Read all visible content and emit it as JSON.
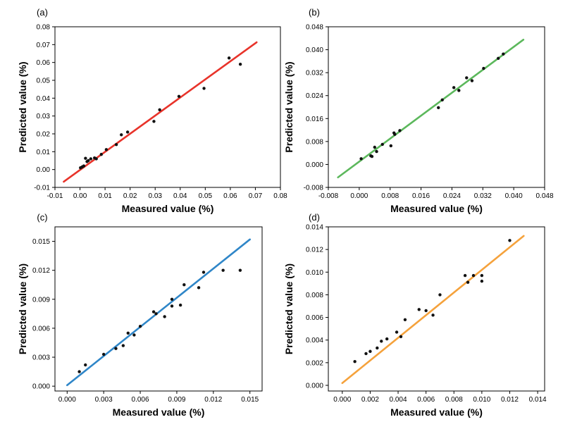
{
  "chart_data": [
    {
      "type": "scatter",
      "panel_label": "(a)",
      "xlabel": "Measured value (%)",
      "ylabel": "Predicted value (%)",
      "xlim": [
        -0.01,
        0.08
      ],
      "ylim": [
        -0.01,
        0.08
      ],
      "xticks": [
        -0.01,
        0,
        0.01,
        0.02,
        0.03,
        0.04,
        0.05,
        0.06,
        0.07,
        0.08
      ],
      "xtick_labels": [
        "-0.01",
        "0.00",
        "0.01",
        "0.02",
        "0.03",
        "0.04",
        "0.05",
        "0.06",
        "0.07",
        "0.08"
      ],
      "yticks": [
        -0.01,
        0,
        0.01,
        0.02,
        0.03,
        0.04,
        0.05,
        0.06,
        0.07,
        0.08
      ],
      "ytick_labels": [
        "-0.01",
        "0.00",
        "0.01",
        "0.02",
        "0.03",
        "0.04",
        "0.05",
        "0.06",
        "0.07",
        "0.08"
      ],
      "line_color": "#e8332a",
      "fit_line": {
        "x": [
          -0.0065,
          0.0705
        ],
        "y": [
          -0.0068,
          0.0713
        ]
      },
      "points": [
        [
          0.0002,
          0.001
        ],
        [
          0.0009,
          0.0015
        ],
        [
          0.0015,
          0.002
        ],
        [
          0.0022,
          0.0063
        ],
        [
          0.0028,
          0.0045
        ],
        [
          0.0033,
          0.005
        ],
        [
          0.0043,
          0.006
        ],
        [
          0.0058,
          0.0065
        ],
        [
          0.0065,
          0.006
        ],
        [
          0.0085,
          0.0085
        ],
        [
          0.0105,
          0.0112
        ],
        [
          0.0145,
          0.014
        ],
        [
          0.0165,
          0.0195
        ],
        [
          0.019,
          0.021
        ],
        [
          0.0295,
          0.027
        ],
        [
          0.0318,
          0.0335
        ],
        [
          0.0395,
          0.041
        ],
        [
          0.0495,
          0.0455
        ],
        [
          0.0595,
          0.0625
        ],
        [
          0.064,
          0.059
        ]
      ]
    },
    {
      "type": "scatter",
      "panel_label": "(b)",
      "xlabel": "Measured value (%)",
      "ylabel": "Predicted value (%)",
      "xlim": [
        -0.008,
        0.048
      ],
      "ylim": [
        -0.008,
        0.048
      ],
      "xticks": [
        -0.008,
        0,
        0.008,
        0.016,
        0.024,
        0.032,
        0.04,
        0.048
      ],
      "xtick_labels": [
        "-0.008",
        "0.000",
        "0.008",
        "0.016",
        "0.024",
        "0.032",
        "0.040",
        "0.048"
      ],
      "yticks": [
        -0.008,
        0,
        0.008,
        0.016,
        0.024,
        0.032,
        0.04,
        0.048
      ],
      "ytick_labels": [
        "-0.008",
        "0.000",
        "0.008",
        "0.016",
        "0.024",
        "0.032",
        "0.040",
        "0.048"
      ],
      "line_color": "#5cb85c",
      "fit_line": {
        "x": [
          -0.0055,
          0.0425
        ],
        "y": [
          -0.0045,
          0.0435
        ]
      },
      "points": [
        [
          0.0005,
          0.002
        ],
        [
          0.003,
          0.003
        ],
        [
          0.0033,
          0.0028
        ],
        [
          0.004,
          0.006
        ],
        [
          0.0045,
          0.0045
        ],
        [
          0.006,
          0.007
        ],
        [
          0.0082,
          0.0065
        ],
        [
          0.009,
          0.011
        ],
        [
          0.0092,
          0.0105
        ],
        [
          0.0105,
          0.0118
        ],
        [
          0.0205,
          0.0198
        ],
        [
          0.0215,
          0.0225
        ],
        [
          0.0245,
          0.0268
        ],
        [
          0.0258,
          0.0258
        ],
        [
          0.0278,
          0.0302
        ],
        [
          0.0292,
          0.0292
        ],
        [
          0.0322,
          0.0335
        ],
        [
          0.036,
          0.037
        ],
        [
          0.0373,
          0.0385
        ]
      ]
    },
    {
      "type": "scatter",
      "panel_label": "(c)",
      "xlabel": "Measured value (%)",
      "ylabel": "Predicted value (%)",
      "xlim": [
        -0.001,
        0.016
      ],
      "ylim": [
        -0.0005,
        0.0165
      ],
      "xticks": [
        0,
        0.003,
        0.006,
        0.009,
        0.012,
        0.015
      ],
      "xtick_labels": [
        "0.000",
        "0.003",
        "0.006",
        "0.009",
        "0.012",
        "0.015"
      ],
      "yticks": [
        0,
        0.003,
        0.006,
        0.009,
        0.012,
        0.015
      ],
      "ytick_labels": [
        "0.000",
        "0.003",
        "0.006",
        "0.009",
        "0.012",
        "0.015"
      ],
      "line_color": "#2f86c8",
      "fit_line": {
        "x": [
          0.0,
          0.015
        ],
        "y": [
          0.0001,
          0.0152
        ]
      },
      "points": [
        [
          0.001,
          0.0015
        ],
        [
          0.0015,
          0.0022
        ],
        [
          0.003,
          0.0033
        ],
        [
          0.004,
          0.0039
        ],
        [
          0.0046,
          0.0042
        ],
        [
          0.005,
          0.0055
        ],
        [
          0.0055,
          0.0053
        ],
        [
          0.006,
          0.0062
        ],
        [
          0.0071,
          0.0077
        ],
        [
          0.0073,
          0.0075
        ],
        [
          0.008,
          0.0072
        ],
        [
          0.0086,
          0.009
        ],
        [
          0.0086,
          0.0083
        ],
        [
          0.0093,
          0.0084
        ],
        [
          0.0096,
          0.0105
        ],
        [
          0.0108,
          0.0102
        ],
        [
          0.0112,
          0.0118
        ],
        [
          0.0128,
          0.012
        ],
        [
          0.0142,
          0.012
        ]
      ]
    },
    {
      "type": "scatter",
      "panel_label": "(d)",
      "xlabel": "Measured value (%)",
      "ylabel": "Predicted value (%)",
      "xlim": [
        -0.001,
        0.0145
      ],
      "ylim": [
        -0.0005,
        0.014
      ],
      "xticks": [
        0,
        0.002,
        0.004,
        0.006,
        0.008,
        0.01,
        0.012,
        0.014
      ],
      "xtick_labels": [
        "0.000",
        "0.002",
        "0.004",
        "0.006",
        "0.008",
        "0.010",
        "0.012",
        "0.014"
      ],
      "yticks": [
        0,
        0.002,
        0.004,
        0.006,
        0.008,
        0.01,
        0.012,
        0.014
      ],
      "ytick_labels": [
        "0.000",
        "0.002",
        "0.004",
        "0.006",
        "0.008",
        "0.010",
        "0.012",
        "0.014"
      ],
      "line_color": "#f5a23c",
      "fit_line": {
        "x": [
          0.0,
          0.013
        ],
        "y": [
          0.0002,
          0.0132
        ]
      },
      "points": [
        [
          0.0009,
          0.0021
        ],
        [
          0.0017,
          0.0028
        ],
        [
          0.002,
          0.003
        ],
        [
          0.0025,
          0.0033
        ],
        [
          0.0028,
          0.0039
        ],
        [
          0.0032,
          0.0041
        ],
        [
          0.0039,
          0.0047
        ],
        [
          0.0042,
          0.0043
        ],
        [
          0.0045,
          0.0058
        ],
        [
          0.0055,
          0.0067
        ],
        [
          0.006,
          0.0066
        ],
        [
          0.0065,
          0.0062
        ],
        [
          0.007,
          0.008
        ],
        [
          0.0088,
          0.0097
        ],
        [
          0.009,
          0.0091
        ],
        [
          0.0094,
          0.0097
        ],
        [
          0.01,
          0.0097
        ],
        [
          0.01,
          0.0092
        ],
        [
          0.012,
          0.0128
        ]
      ]
    }
  ]
}
